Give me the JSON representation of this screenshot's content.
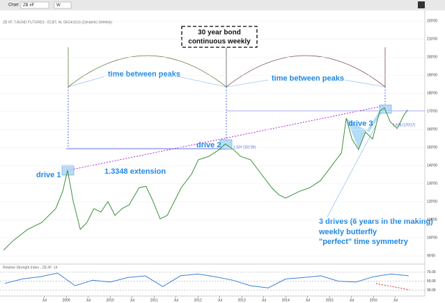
{
  "window": {
    "title": "Chart",
    "symbol": "ZB #F",
    "interval": "W"
  },
  "chart_data": [
    {
      "type": "line",
      "title": "ZB #F, T-BOND FUTURES - ECBT, W, 09/24/2016 (Dynamic) (Weekly)",
      "x": [
        2007.57,
        2007.81,
        2008.12,
        2008.44,
        2008.76,
        2008.92,
        2009.03,
        2009.16,
        2009.32,
        2009.47,
        2009.63,
        2009.79,
        2009.95,
        2010.11,
        2010.27,
        2010.43,
        2010.66,
        2010.82,
        2010.98,
        2011.14,
        2011.3,
        2011.46,
        2011.62,
        2011.86,
        2012.01,
        2012.25,
        2012.49,
        2012.62,
        2012.81,
        2012.97,
        2013.2,
        2013.44,
        2013.68,
        2013.84,
        2014.0,
        2014.16,
        2014.32,
        2014.55,
        2014.79,
        2015.03,
        2015.27,
        2015.38,
        2015.51,
        2015.66,
        2015.82,
        2015.98,
        2016.14,
        2016.25,
        2016.38,
        2016.54,
        2016.7,
        2016.78
      ],
      "values": [
        93.2,
        98.9,
        104.7,
        108.5,
        116.2,
        125.8,
        137.4,
        120.1,
        104.7,
        108.5,
        116.2,
        114.3,
        120.1,
        112.4,
        116.2,
        118.2,
        127.8,
        128.5,
        120.1,
        110.5,
        112.4,
        120.1,
        127.8,
        135.5,
        143.2,
        145.1,
        148.9,
        152.0,
        148.9,
        145.1,
        143.2,
        135.5,
        127.8,
        123.9,
        122.0,
        123.9,
        125.8,
        127.8,
        131.6,
        139.3,
        147.0,
        166.2,
        154.7,
        148.9,
        158.5,
        154.7,
        170.1,
        172.0,
        164.3,
        160.5,
        168.2,
        170.8
      ],
      "color": "#3a8f3a",
      "xlim": [
        2007.49,
        2017.17
      ],
      "ylim": [
        85.5,
        222
      ],
      "xticks": [
        {
          "value": 2008.5,
          "label": "Jul"
        },
        2009,
        {
          "value": 2009.5,
          "label": "Jul"
        },
        2010,
        {
          "value": 2010.5,
          "label": "Jul"
        },
        2011,
        {
          "value": 2011.5,
          "label": "Jul"
        },
        2012,
        {
          "value": 2012.5,
          "label": "Jul"
        },
        2013,
        {
          "value": 2013.5,
          "label": "Jul"
        },
        2014,
        {
          "value": 2014.5,
          "label": "Jul"
        },
        2015,
        {
          "value": 2015.5,
          "label": "Jul"
        },
        2016,
        {
          "value": 2016.5,
          "label": "Jul"
        }
      ],
      "yticks": [
        {
          "value": 90,
          "label": "90'00"
        },
        {
          "value": 100,
          "label": "100'00"
        },
        {
          "value": 110,
          "label": "110'00"
        },
        {
          "value": 120,
          "label": "120'00"
        },
        {
          "value": 130,
          "label": "130'00"
        },
        {
          "value": 140,
          "label": "140'00"
        },
        {
          "value": 150,
          "label": "150'00"
        },
        {
          "value": 160,
          "label": "160'00"
        },
        {
          "value": 170,
          "label": "170'00"
        },
        {
          "value": 180,
          "label": "180'00"
        },
        {
          "value": 190,
          "label": "190'00"
        },
        {
          "value": 200,
          "label": "200'00"
        },
        {
          "value": 210,
          "label": "210'00"
        },
        {
          "value": 220,
          "label": "220'00"
        }
      ],
      "annotations": [
        "30 year bond",
        "continuous weekly",
        "time between peaks",
        "time between peaks",
        "drive 1",
        "drive 2",
        "drive 3",
        "1.3348 extension",
        "1.334 (151'30)",
        "1.618 (170'17)",
        "3 drives (6 years in the making)",
        "weekly butterfly",
        "\"perfect\" time symmetry"
      ]
    },
    {
      "type": "line",
      "title": "Relative Strength Index - ZB #F: 14",
      "x": [
        2007.6,
        2008.0,
        2008.4,
        2008.8,
        2009.2,
        2009.6,
        2010.0,
        2010.4,
        2010.8,
        2011.2,
        2011.6,
        2012.0,
        2012.4,
        2012.8,
        2013.2,
        2013.6,
        2014.0,
        2014.4,
        2014.8,
        2015.2,
        2015.6,
        2016.0,
        2016.4,
        2016.8
      ],
      "values": [
        45,
        55,
        60,
        68,
        40,
        52,
        48,
        58,
        62,
        38,
        62,
        66,
        60,
        52,
        40,
        35,
        55,
        58,
        62,
        50,
        48,
        60,
        66,
        62
      ],
      "color": "#3a7fd5",
      "xlim": [
        2007.49,
        2017.17
      ],
      "ylim": [
        20,
        85
      ],
      "yticks": [
        {
          "value": 70,
          "label": "70.00"
        },
        {
          "value": 50,
          "label": "50.00"
        },
        {
          "value": 30,
          "label": "30.00"
        }
      ]
    }
  ]
}
